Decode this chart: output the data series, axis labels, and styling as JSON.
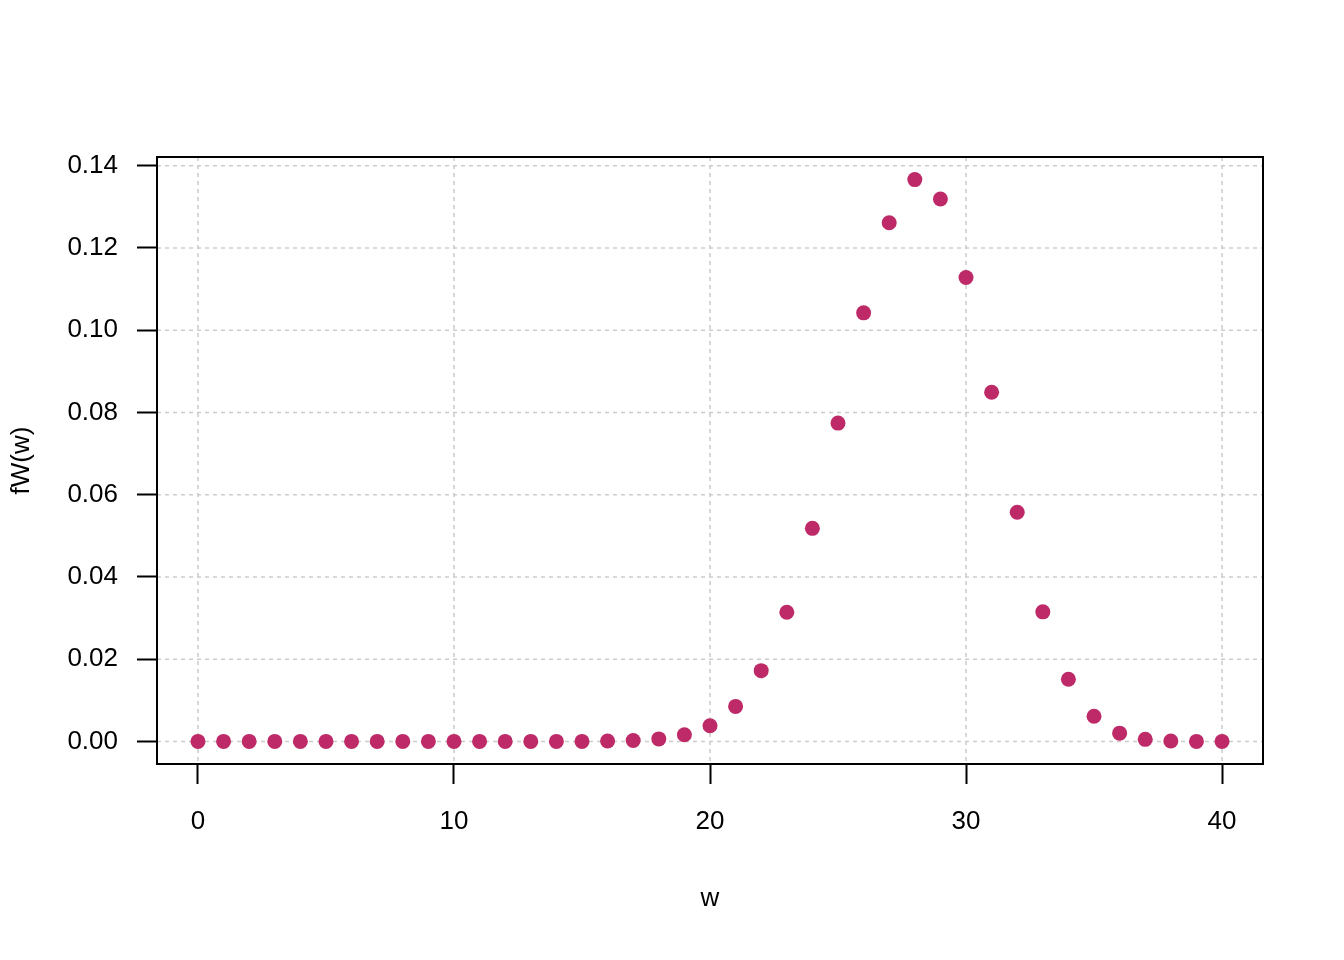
{
  "chart_data": {
    "type": "scatter",
    "xlabel": "w",
    "ylabel": "fW(w)",
    "x": [
      0,
      1,
      2,
      3,
      4,
      5,
      6,
      7,
      8,
      9,
      10,
      11,
      12,
      13,
      14,
      15,
      16,
      17,
      18,
      19,
      20,
      21,
      22,
      23,
      24,
      25,
      26,
      27,
      28,
      29,
      30,
      31,
      32,
      33,
      34,
      35,
      36,
      37,
      38,
      39,
      40
    ],
    "values": [
      0,
      0,
      0,
      0,
      0,
      0,
      0,
      0,
      0,
      0,
      0,
      0,
      0,
      0,
      0,
      0,
      0.0001,
      0.0002,
      0.0006,
      0.0016,
      0.0038,
      0.0085,
      0.0172,
      0.0314,
      0.0518,
      0.0774,
      0.1042,
      0.1261,
      0.1366,
      0.1319,
      0.1128,
      0.0849,
      0.0557,
      0.0315,
      0.0151,
      0.0061,
      0.002,
      0.0005,
      0.0001,
      0,
      0
    ],
    "color": "#be2a68",
    "marker": "circle",
    "grid": true,
    "xlim": [
      -1.6,
      41.6
    ],
    "xticks": [
      0,
      10,
      20,
      30,
      40
    ],
    "ylim": [
      -0.0055,
      0.1421
    ],
    "yticks": [
      {
        "value": 0,
        "label": "0.00"
      },
      {
        "value": 0.02,
        "label": "0.02"
      },
      {
        "value": 0.04,
        "label": "0.04"
      },
      {
        "value": 0.06,
        "label": "0.06"
      },
      {
        "value": 0.08,
        "label": "0.08"
      },
      {
        "value": 0.1,
        "label": "0.10"
      },
      {
        "value": 0.12,
        "label": "0.12"
      },
      {
        "value": 0.14,
        "label": "0.14"
      }
    ]
  }
}
